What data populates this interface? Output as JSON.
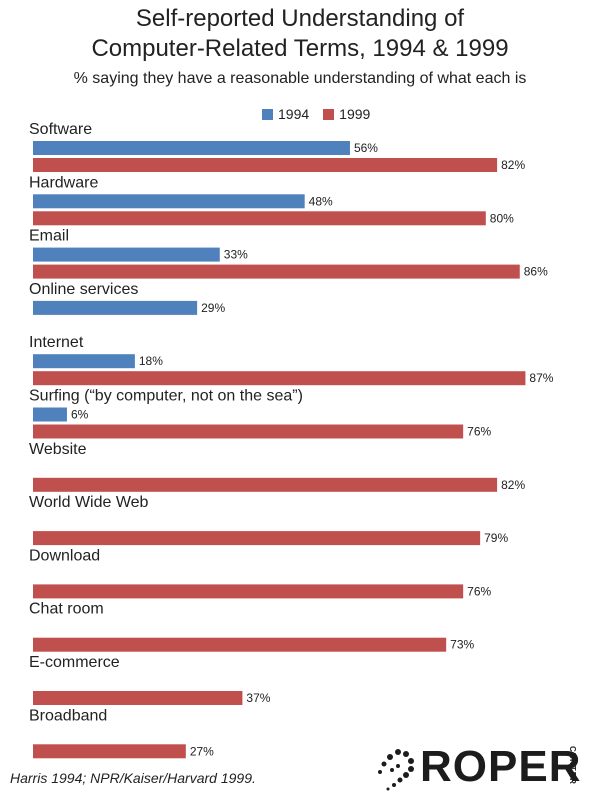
{
  "title_lines": [
    "Self-reported Understanding of",
    "Computer-Related Terms, 1994 & 1999"
  ],
  "subtitle": "% saying they have a reasonable understanding of what each is",
  "source": "Harris 1994; NPR/Kaiser/Harvard  1999.",
  "logo": {
    "text": "ROPER",
    "sub": "CENTER"
  },
  "colors": {
    "1994": "#4f81bd",
    "1999": "#c0504d"
  },
  "chart_data": {
    "type": "bar",
    "orientation": "horizontal",
    "title": "Self-reported Understanding of Computer-Related Terms, 1994 & 1999",
    "subtitle": "% saying they have a reasonable understanding of what each is",
    "legend_position": "top",
    "categories": [
      "Software",
      "Hardware",
      "Email",
      "Online services",
      "Internet",
      "Surfing (“by computer, not on the sea”)",
      "Website",
      "World Wide Web",
      "Download",
      "Chat room",
      "E-commerce",
      "Broadband"
    ],
    "series": [
      {
        "name": "1994",
        "values": [
          56,
          48,
          33,
          29,
          18,
          6,
          null,
          null,
          null,
          null,
          null,
          null
        ]
      },
      {
        "name": "1999",
        "values": [
          82,
          80,
          86,
          null,
          87,
          76,
          82,
          79,
          76,
          73,
          37,
          27
        ]
      }
    ],
    "unit": "%",
    "xlim": [
      0,
      100
    ]
  }
}
